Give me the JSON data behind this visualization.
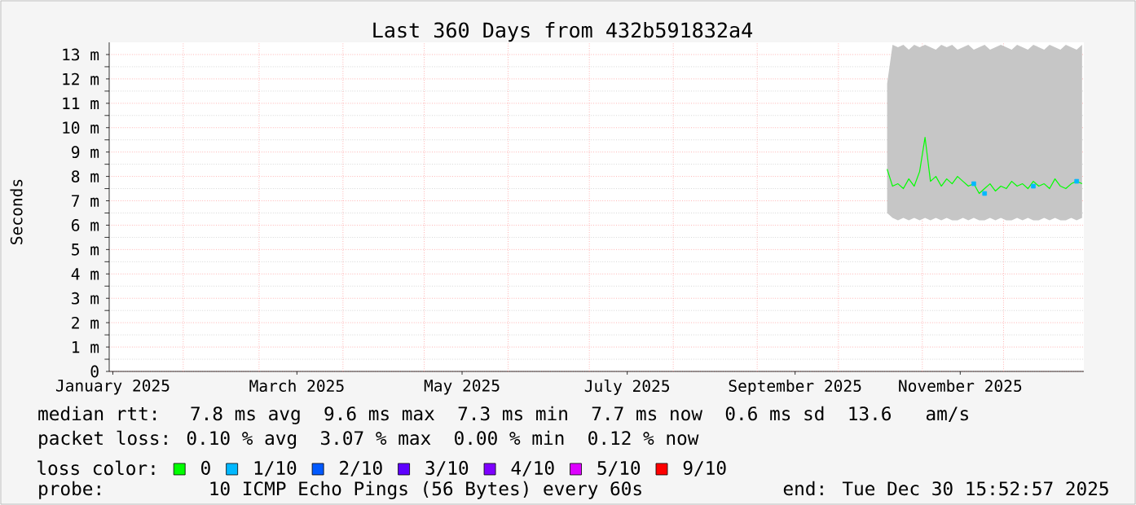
{
  "chart_data": {
    "type": "line",
    "title": "Last 360 Days from 432b591832a4",
    "ylabel": "Seconds",
    "legend_title": "loss color:",
    "x": [
      "2025-10-19",
      "2025-10-21",
      "2025-10-23",
      "2025-10-25",
      "2025-10-27",
      "2025-10-29",
      "2025-10-31",
      "2025-11-02",
      "2025-11-04",
      "2025-11-06",
      "2025-11-08",
      "2025-11-10",
      "2025-11-12",
      "2025-11-14",
      "2025-11-16",
      "2025-11-18",
      "2025-11-20",
      "2025-11-22",
      "2025-11-24",
      "2025-11-26",
      "2025-11-28",
      "2025-11-30",
      "2025-12-02",
      "2025-12-04",
      "2025-12-06",
      "2025-12-08",
      "2025-12-10",
      "2025-12-12",
      "2025-12-14",
      "2025-12-16",
      "2025-12-18",
      "2025-12-20",
      "2025-12-22",
      "2025-12-24",
      "2025-12-26",
      "2025-12-28",
      "2025-12-30"
    ],
    "series": [
      {
        "name": "0",
        "color": "#00ff00",
        "values": [
          8.3,
          7.6,
          7.7,
          7.5,
          7.9,
          7.6,
          8.2,
          9.6,
          7.8,
          8.0,
          7.6,
          7.9,
          7.7,
          8.0,
          7.8,
          7.6,
          7.7,
          7.3,
          7.5,
          7.7,
          7.4,
          7.6,
          7.5,
          7.8,
          7.6,
          7.7,
          7.5,
          7.8,
          7.6,
          7.7,
          7.5,
          7.9,
          7.6,
          7.5,
          7.7,
          7.8,
          7.7
        ],
        "lower": [
          6.5,
          6.3,
          6.2,
          6.3,
          6.2,
          6.3,
          6.2,
          6.3,
          6.2,
          6.3,
          6.2,
          6.3,
          6.2,
          6.2,
          6.3,
          6.2,
          6.3,
          6.2,
          6.2,
          6.3,
          6.2,
          6.3,
          6.2,
          6.2,
          6.3,
          6.2,
          6.3,
          6.2,
          6.2,
          6.3,
          6.2,
          6.3,
          6.2,
          6.2,
          6.3,
          6.2,
          6.3
        ],
        "upper": [
          11.8,
          13.4,
          13.3,
          13.4,
          13.2,
          13.4,
          13.3,
          13.4,
          13.3,
          13.2,
          13.4,
          13.3,
          13.4,
          13.2,
          13.3,
          13.4,
          13.2,
          13.3,
          13.4,
          13.2,
          13.3,
          13.4,
          13.3,
          13.2,
          13.4,
          13.3,
          13.2,
          13.4,
          13.3,
          13.2,
          13.4,
          13.3,
          13.2,
          13.4,
          13.3,
          13.2,
          13.4
        ]
      },
      {
        "name": "1/10",
        "type": "scatter",
        "color": "#00b8ff",
        "values": [
          null,
          null,
          null,
          null,
          null,
          null,
          null,
          null,
          null,
          null,
          null,
          null,
          null,
          null,
          null,
          null,
          7.7,
          null,
          7.3,
          null,
          null,
          null,
          null,
          null,
          null,
          null,
          null,
          7.6,
          null,
          null,
          null,
          null,
          null,
          null,
          null,
          7.8,
          null
        ]
      },
      {
        "name": "2/10",
        "color": "#0059ff",
        "values": [
          null,
          null,
          null,
          null,
          null,
          null,
          null,
          null,
          null,
          null,
          null,
          null,
          null,
          null,
          null,
          null,
          null,
          null,
          null,
          null,
          null,
          null,
          null,
          null,
          null,
          null,
          null,
          null,
          null,
          null,
          null,
          null,
          null,
          null,
          null,
          null,
          null
        ]
      },
      {
        "name": "3/10",
        "color": "#5e00ff",
        "values": [
          null,
          null,
          null,
          null,
          null,
          null,
          null,
          null,
          null,
          null,
          null,
          null,
          null,
          null,
          null,
          null,
          null,
          null,
          null,
          null,
          null,
          null,
          null,
          null,
          null,
          null,
          null,
          null,
          null,
          null,
          null,
          null,
          null,
          null,
          null,
          null,
          null
        ]
      },
      {
        "name": "4/10",
        "color": "#7e00ff",
        "values": [
          null,
          null,
          null,
          null,
          null,
          null,
          null,
          null,
          null,
          null,
          null,
          null,
          null,
          null,
          null,
          null,
          null,
          null,
          null,
          null,
          null,
          null,
          null,
          null,
          null,
          null,
          null,
          null,
          null,
          null,
          null,
          null,
          null,
          null,
          null,
          null,
          null
        ]
      },
      {
        "name": "5/10",
        "color": "#dd00ff",
        "values": [
          null,
          null,
          null,
          null,
          null,
          null,
          null,
          null,
          null,
          null,
          null,
          null,
          null,
          null,
          null,
          null,
          null,
          null,
          null,
          null,
          null,
          null,
          null,
          null,
          null,
          null,
          null,
          null,
          null,
          null,
          null,
          null,
          null,
          null,
          null,
          null,
          null
        ]
      },
      {
        "name": "9/10",
        "color": "#ff0000",
        "values": [
          null,
          null,
          null,
          null,
          null,
          null,
          null,
          null,
          null,
          null,
          null,
          null,
          null,
          null,
          null,
          null,
          null,
          null,
          null,
          null,
          null,
          null,
          null,
          null,
          null,
          null,
          null,
          null,
          null,
          null,
          null,
          null,
          null,
          null,
          null,
          null,
          null
        ]
      }
    ],
    "xlim": [
      "2025-01-04T15:52",
      "2025-12-30T15:52"
    ],
    "xticks": [
      {
        "value": "2025-01-06",
        "label": "January 2025"
      },
      {
        "value": "2025-02-01",
        "label": null
      },
      {
        "value": "2025-03-01",
        "label": null
      },
      {
        "value": "2025-03-15",
        "label": "March 2025"
      },
      {
        "value": "2025-04-01",
        "label": null
      },
      {
        "value": "2025-05-01",
        "label": null
      },
      {
        "value": "2025-05-15",
        "label": "May 2025"
      },
      {
        "value": "2025-06-01",
        "label": null
      },
      {
        "value": "2025-07-01",
        "label": null
      },
      {
        "value": "2025-07-15",
        "label": "July 2025"
      },
      {
        "value": "2025-08-01",
        "label": null
      },
      {
        "value": "2025-09-01",
        "label": null
      },
      {
        "value": "2025-09-15",
        "label": "September 2025"
      },
      {
        "value": "2025-10-01",
        "label": null
      },
      {
        "value": "2025-11-01",
        "label": null
      },
      {
        "value": "2025-11-15",
        "label": "November 2025"
      },
      {
        "value": "2025-12-01",
        "label": null
      }
    ],
    "ylim": [
      0,
      13.5
    ],
    "yticks": [
      0,
      {
        "value": 1,
        "label": "1 m"
      },
      {
        "value": 2,
        "label": "2 m"
      },
      {
        "value": 3,
        "label": "3 m"
      },
      {
        "value": 4,
        "label": "4 m"
      },
      {
        "value": 5,
        "label": "5 m"
      },
      {
        "value": 6,
        "label": "6 m"
      },
      {
        "value": 7,
        "label": "7 m"
      },
      {
        "value": 8,
        "label": "8 m"
      },
      {
        "value": 9,
        "label": "9 m"
      },
      {
        "value": 10,
        "label": "10 m"
      },
      {
        "value": 11,
        "label": "11 m"
      },
      {
        "value": 12,
        "label": "12 m"
      },
      {
        "value": 13,
        "label": "13 m"
      }
    ],
    "grid": true,
    "legend": "bottom left",
    "annotations": [
      "median rtt:  7.8 ms avg  9.6 ms max  7.3 ms min  7.7 ms now  0.6 ms sd  13.6   am/s",
      "packet loss: 0.10 % avg  3.07 % max  0.00 % min  0.12 % now",
      "probe:       10 ICMP Echo Pings (56 Bytes) every 60s",
      "end: Tue Dec 30 15:52:57 2025"
    ]
  }
}
